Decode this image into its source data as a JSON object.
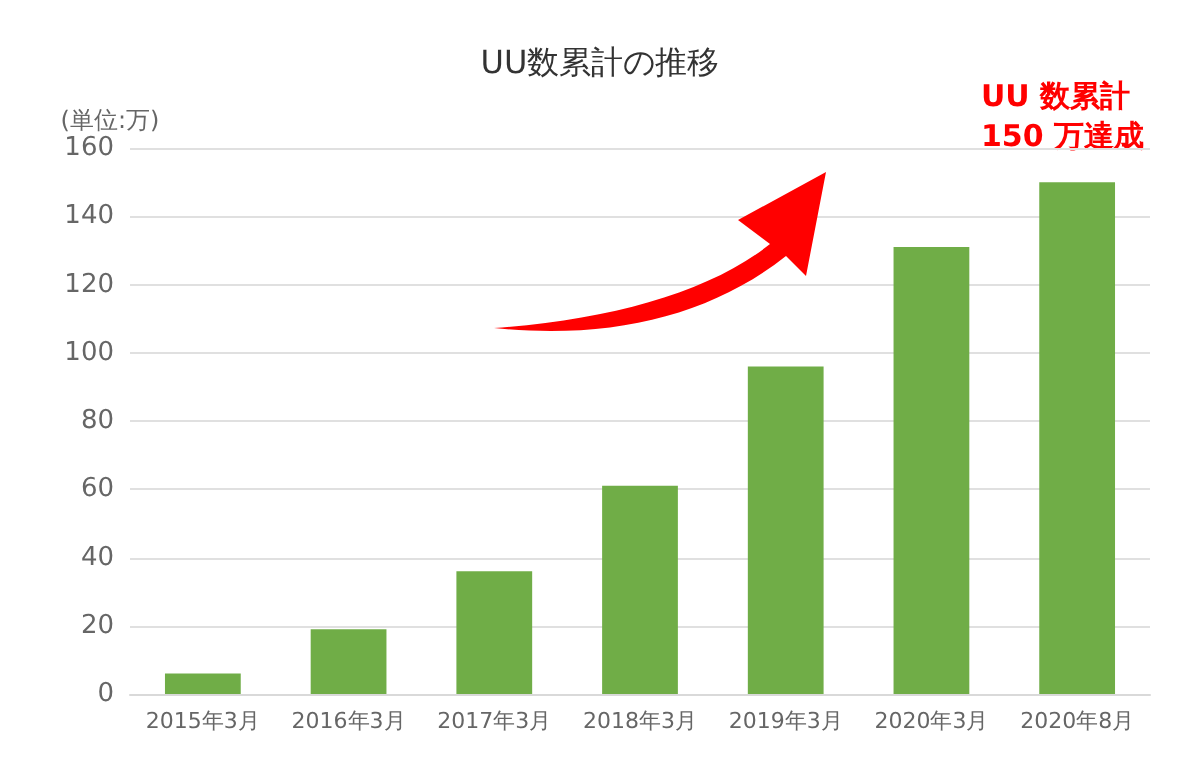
{
  "chart_data": {
    "type": "bar",
    "title": "UU数累計の推移",
    "ylabel": "(単位:万)",
    "categories": [
      "2015年3月",
      "2016年3月",
      "2017年3月",
      "2018年3月",
      "2019年3月",
      "2020年3月",
      "2020年8月"
    ],
    "values": [
      6,
      19,
      36,
      61,
      96,
      131,
      150
    ],
    "color": "#70ad47",
    "ylim": [
      0,
      160
    ],
    "yticks": [
      0,
      20,
      40,
      60,
      80,
      100,
      120,
      140,
      160
    ],
    "grid": "y",
    "annotations": [
      "UU 数累計\n150 万達成"
    ]
  }
}
